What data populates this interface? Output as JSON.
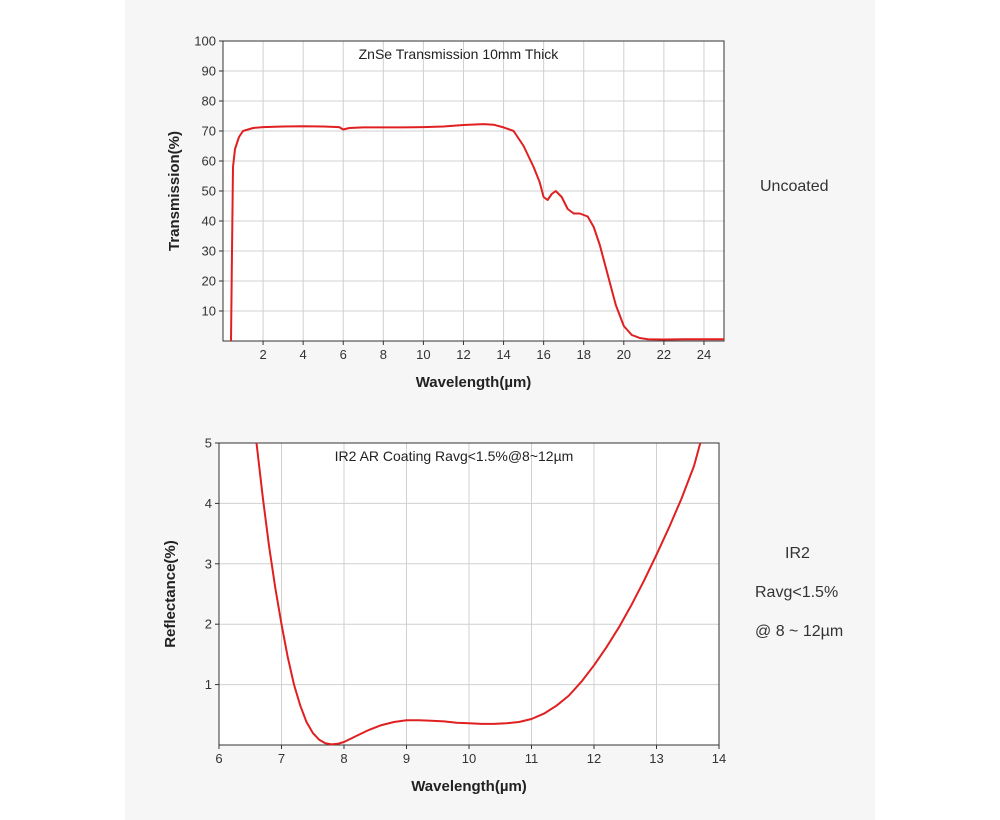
{
  "colors": {
    "curve": "#e02020",
    "grid": "#d0d0d0",
    "axis": "#333333",
    "plot_bg": "#ffffff"
  },
  "chart_data": [
    {
      "type": "line",
      "title": "ZnSe Transmission 10mm Thick",
      "xlabel": "Wavelength(µm)",
      "ylabel": "Transmission(%)",
      "xlim": [
        0,
        25
      ],
      "ylim": [
        0,
        100
      ],
      "xticks": [
        2,
        4,
        6,
        8,
        10,
        12,
        14,
        16,
        18,
        20,
        22,
        24
      ],
      "yticks": [
        10,
        20,
        30,
        40,
        50,
        60,
        70,
        80,
        90,
        100
      ],
      "grid": true,
      "series": [
        {
          "x": [
            0.4,
            0.45,
            0.5,
            0.6,
            0.8,
            1.0,
            1.5,
            2.0,
            3.0,
            4.0,
            5.0,
            5.8,
            6.0,
            6.3,
            7.0,
            8.0,
            9.0,
            10.0,
            11.0,
            12.0,
            13.0,
            13.5,
            14.0,
            14.5,
            15.0,
            15.5,
            15.8,
            16.0,
            16.2,
            16.4,
            16.6,
            16.9,
            17.2,
            17.5,
            17.8,
            18.2,
            18.5,
            18.8,
            19.2,
            19.6,
            20.0,
            20.4,
            20.8,
            21.2,
            22.0,
            23.0,
            24.0,
            25.0
          ],
          "y": [
            0,
            30,
            58,
            64,
            68,
            70,
            71,
            71.3,
            71.5,
            71.6,
            71.5,
            71.3,
            70.5,
            71,
            71.2,
            71.2,
            71.2,
            71.3,
            71.5,
            72,
            72.3,
            72.1,
            71.2,
            70,
            65,
            58,
            53,
            48,
            47,
            49,
            50,
            48,
            44,
            42.5,
            42.5,
            41.5,
            38,
            32,
            22,
            12,
            5,
            2,
            1,
            0.6,
            0.5,
            0.6,
            0.6,
            0.6
          ]
        }
      ]
    },
    {
      "type": "line",
      "title": "IR2 AR Coating Ravg<1.5%@8~12µm",
      "xlabel": "Wavelength(µm)",
      "ylabel": "Reflectance(%)",
      "xlim": [
        6,
        14
      ],
      "ylim": [
        0,
        5
      ],
      "xticks": [
        6,
        7,
        8,
        9,
        10,
        11,
        12,
        13,
        14
      ],
      "yticks": [
        1,
        2,
        3,
        4,
        5
      ],
      "grid": true,
      "series": [
        {
          "x": [
            6.6,
            6.7,
            6.8,
            6.9,
            7.0,
            7.1,
            7.2,
            7.3,
            7.4,
            7.5,
            7.6,
            7.7,
            7.8,
            7.9,
            8.0,
            8.2,
            8.4,
            8.6,
            8.8,
            9.0,
            9.2,
            9.4,
            9.6,
            9.8,
            10.0,
            10.2,
            10.4,
            10.6,
            10.8,
            11.0,
            11.2,
            11.4,
            11.6,
            11.8,
            12.0,
            12.2,
            12.4,
            12.6,
            12.8,
            13.0,
            13.2,
            13.4,
            13.6,
            13.7
          ],
          "y": [
            5.0,
            4.1,
            3.3,
            2.6,
            2.0,
            1.45,
            1.0,
            0.65,
            0.38,
            0.2,
            0.09,
            0.03,
            0.01,
            0.02,
            0.05,
            0.15,
            0.25,
            0.33,
            0.38,
            0.41,
            0.41,
            0.4,
            0.39,
            0.37,
            0.36,
            0.35,
            0.35,
            0.36,
            0.38,
            0.43,
            0.52,
            0.65,
            0.82,
            1.05,
            1.32,
            1.62,
            1.95,
            2.32,
            2.72,
            3.15,
            3.6,
            4.08,
            4.62,
            5.0
          ]
        }
      ]
    }
  ],
  "side_notes": {
    "top": "Uncoated",
    "bottom": [
      "IR2",
      "Ravg<1.5%",
      "@ 8 ~ 12µm"
    ]
  }
}
